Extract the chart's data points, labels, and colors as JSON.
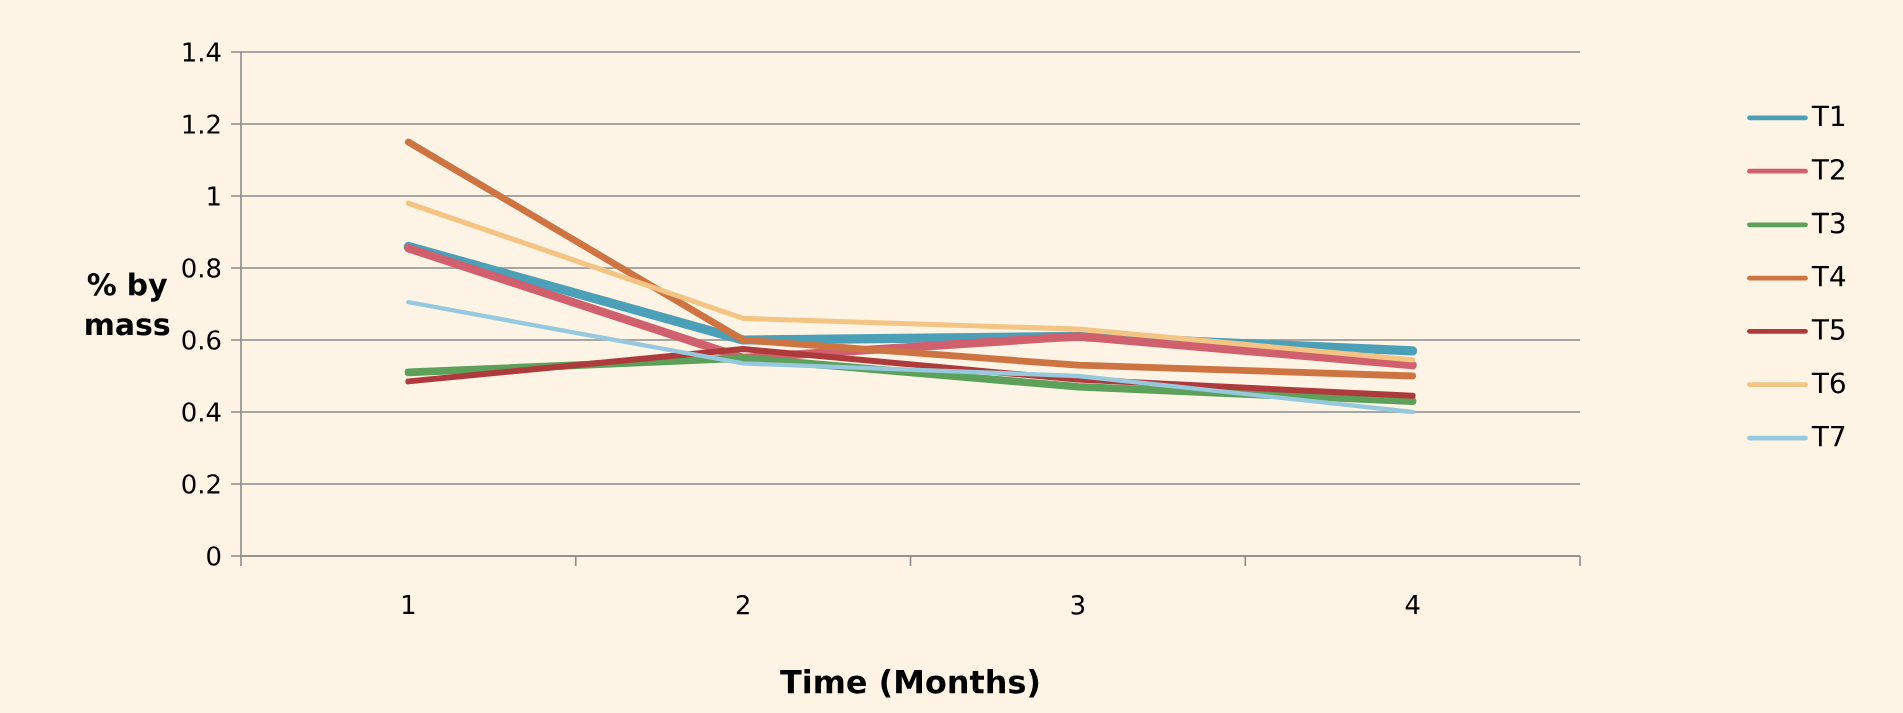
{
  "chart_data": {
    "type": "line",
    "xlabel": "Time (Months)",
    "ylabel": "% by mass",
    "categories": [
      "1",
      "2",
      "3",
      "4"
    ],
    "series": [
      {
        "name": "T1",
        "color": "#4ba0b8",
        "values": [
          0.86,
          0.6,
          0.61,
          0.57
        ]
      },
      {
        "name": "T2",
        "color": "#d0606e",
        "values": [
          0.855,
          0.55,
          0.61,
          0.53
        ]
      },
      {
        "name": "T3",
        "color": "#5da05a",
        "values": [
          0.51,
          0.55,
          0.47,
          0.43
        ]
      },
      {
        "name": "T4",
        "color": "#ce7443",
        "values": [
          1.15,
          0.6,
          0.53,
          0.5
        ]
      },
      {
        "name": "T5",
        "color": "#ae3a3b",
        "values": [
          0.485,
          0.575,
          0.49,
          0.445
        ]
      },
      {
        "name": "T6",
        "color": "#f4c484",
        "values": [
          0.98,
          0.66,
          0.63,
          0.545
        ]
      },
      {
        "name": "T7",
        "color": "#97c9de",
        "values": [
          0.705,
          0.535,
          0.5,
          0.4
        ]
      }
    ],
    "ylim": [
      0,
      1.4
    ],
    "yticks": [
      0,
      0.2,
      0.4,
      0.6,
      0.8,
      1,
      1.2,
      1.4
    ],
    "grid": "y",
    "legend": "right",
    "marker": "none",
    "line_style": "solid"
  }
}
